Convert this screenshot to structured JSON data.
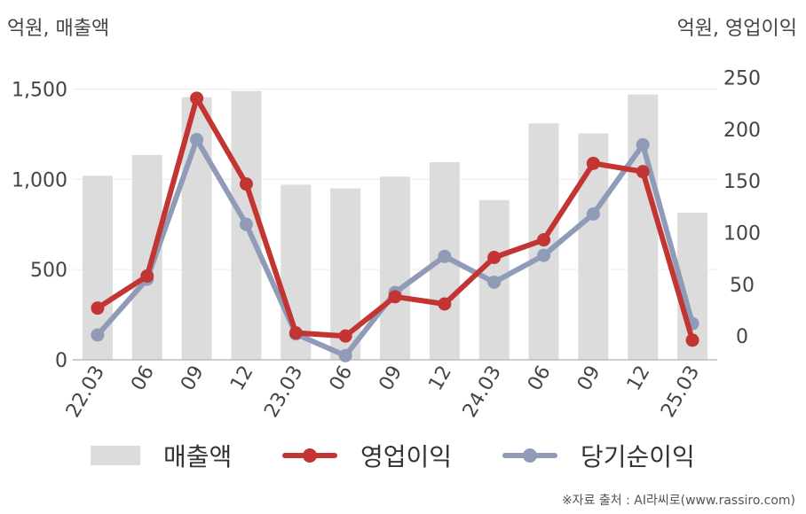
{
  "units": {
    "left": "억원, 매출액",
    "right": "억원, 영업이익"
  },
  "chart_data": {
    "type": "bar+line",
    "categories": [
      "22.03",
      "06",
      "09",
      "12",
      "23.03",
      "06",
      "09",
      "12",
      "24.03",
      "06",
      "09",
      "12",
      "25.03"
    ],
    "left_axis": {
      "ticks": [
        "0",
        "500",
        "1,000",
        "1,500"
      ],
      "ylim": [
        0,
        1650
      ]
    },
    "right_axis": {
      "ticks": [
        "0",
        "50",
        "100",
        "150",
        "200",
        "250"
      ],
      "ylim": [
        -23,
        265
      ]
    },
    "series": [
      {
        "name": "매출액",
        "kind": "bar",
        "axis": "left",
        "color": "#dcdcdc",
        "values": [
          1020,
          1135,
          1455,
          1490,
          970,
          950,
          1015,
          1095,
          885,
          1310,
          1255,
          1470,
          815
        ]
      },
      {
        "name": "영업이익",
        "kind": "line",
        "axis": "right",
        "color": "#c23532",
        "values": [
          27,
          58,
          230,
          147,
          3,
          0,
          38,
          31,
          76,
          93,
          167,
          159,
          -4
        ]
      },
      {
        "name": "당기순이익",
        "kind": "line",
        "axis": "right",
        "color": "#8f9bb7",
        "values": [
          1,
          55,
          190,
          108,
          2,
          -19,
          42,
          77,
          52,
          78,
          118,
          185,
          12
        ]
      }
    ],
    "grid": true,
    "legend": "bottom"
  },
  "source": "※자료 출처 : AI라씨로(www.rassiro.com)"
}
